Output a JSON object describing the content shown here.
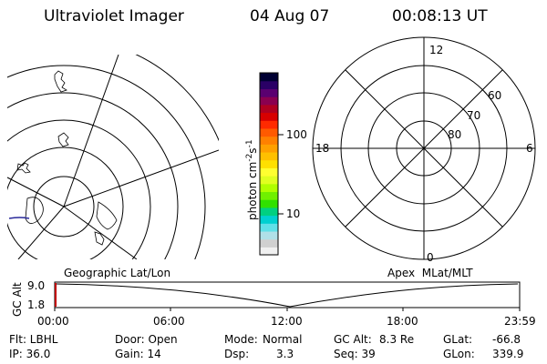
{
  "header": {
    "instrument": "Ultraviolet Imager",
    "date": "04 Aug 07",
    "time": "00:08:13 UT"
  },
  "geo_map": {
    "label": "Geographic Lat/Lon"
  },
  "colorbar": {
    "unit_label": "photon cm",
    "unit_sup1": "-2",
    "unit_s": "s",
    "unit_sup2": "-1",
    "tick_labels": [
      "100",
      "10"
    ],
    "scale": "log",
    "colors": [
      "#000033",
      "#2a0066",
      "#5a0070",
      "#8a0050",
      "#b00020",
      "#d80000",
      "#ff2a00",
      "#ff5a00",
      "#ff8000",
      "#ffa000",
      "#ffc000",
      "#ffe000",
      "#ffff30",
      "#e0ff20",
      "#b0ff00",
      "#70f000",
      "#30e000",
      "#00d080",
      "#00d0d0",
      "#60e0e8",
      "#b0e0e8",
      "#d0d0d0",
      "#f0f0f0"
    ]
  },
  "apex_dial": {
    "label": "Apex  MLat/MLT",
    "mlt_labels": {
      "top": "12",
      "left": "18",
      "right": "6",
      "bottom": "0"
    },
    "lat_labels": [
      "60",
      "70",
      "80"
    ]
  },
  "altitude_plot": {
    "ylabel": "GC Alt",
    "y_ticks": [
      "9.0",
      "1.8"
    ],
    "x_ticks": [
      "00:00",
      "06:00",
      "12:00",
      "18:00",
      "23:59"
    ]
  },
  "status": {
    "flt": "Flt: LBHL",
    "ip": "IP: 36.0",
    "door": "Door: Open",
    "gain": "Gain: 14",
    "mode_label": "Mode:",
    "mode": "Normal",
    "dsp_label": "Dsp:",
    "dsp": "3.3",
    "gc_alt_label": "GC Alt:",
    "gc_alt": "8.3 Re",
    "seq": "Seq: 39",
    "glat_label": "GLat:",
    "glat": "-66.8",
    "glon_label": "GLon:",
    "glon": "339.9"
  }
}
